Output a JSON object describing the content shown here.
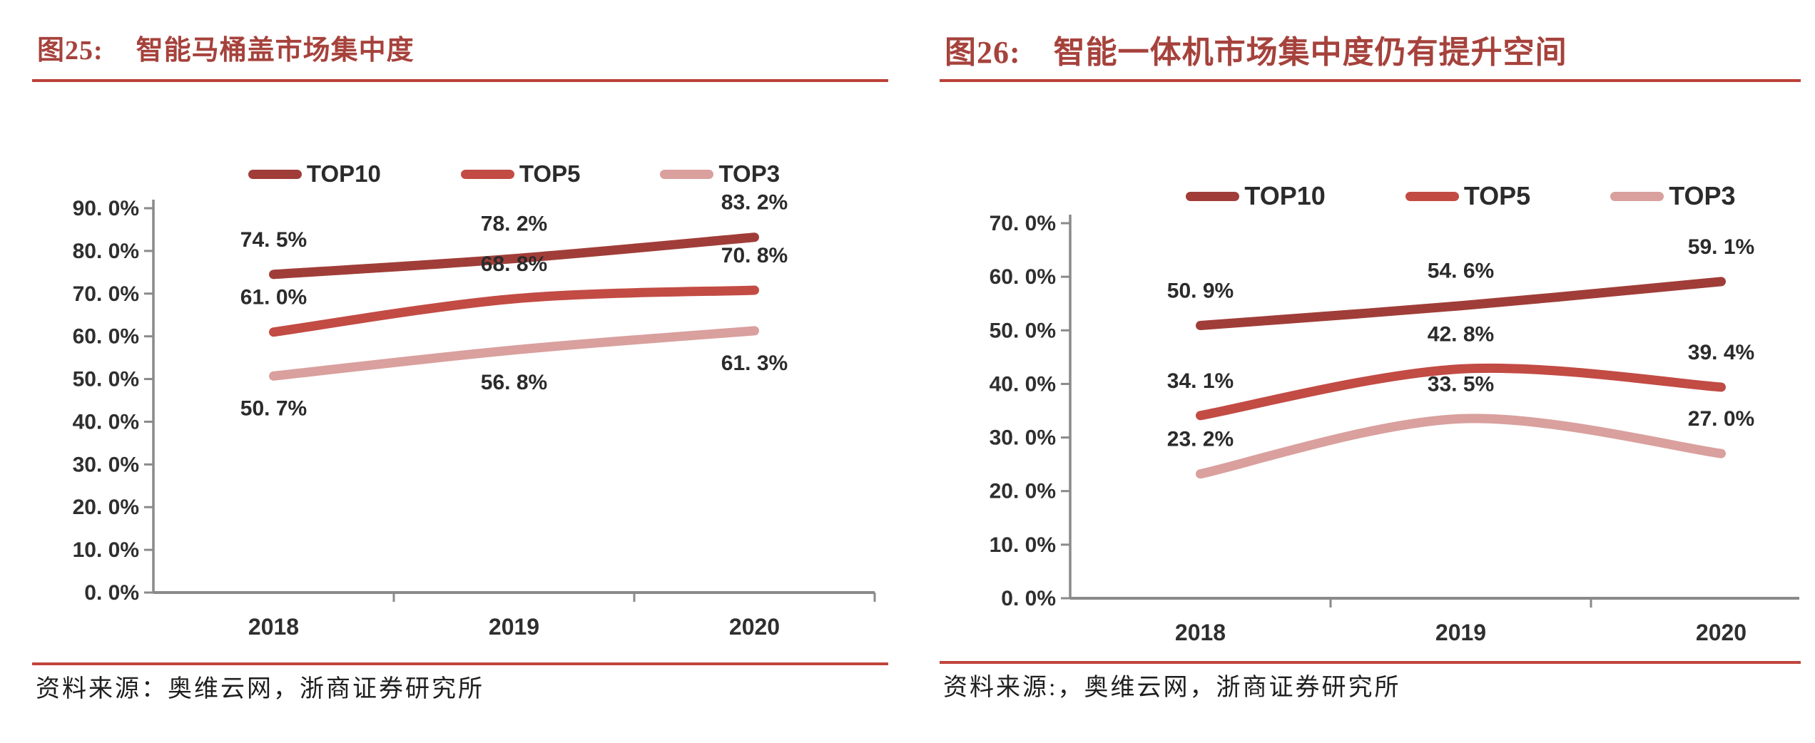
{
  "colors": {
    "background": "#ffffff",
    "title": "#a6423c",
    "heading_rule": "#bc4038",
    "divider_rule": "#c0453c",
    "axis": "#8a8a8a",
    "tick_text": "#2f2f2f",
    "label_text": "#2b2b2b",
    "source_text": "#1f1f1f",
    "top10": "#a03d38",
    "top5": "#c24b44",
    "top3": "#d9a09e"
  },
  "panels": [
    {
      "figure_label": "图25:",
      "title": "智能马桶盖市场集中度",
      "source": "资料来源：奥维云网，浙商证券研究所"
    },
    {
      "figure_label": "图26:",
      "title": "智能一体机市场集中度仍有提升空间",
      "source": "资料来源:，奥维云网，浙商证券研究所"
    }
  ],
  "chart_data": [
    {
      "type": "line",
      "title": "图25: 智能马桶盖市场集中度",
      "categories": [
        "2018",
        "2019",
        "2020"
      ],
      "series": [
        {
          "name": "TOP10",
          "values": [
            74.5,
            78.2,
            83.2
          ],
          "point_labels": [
            "74. 5%",
            "78. 2%",
            "83. 2%"
          ],
          "color": "#a03d38",
          "label_position": "above"
        },
        {
          "name": "TOP5",
          "values": [
            61.0,
            68.8,
            70.8
          ],
          "point_labels": [
            "61. 0%",
            "68. 8%",
            "70. 8%"
          ],
          "color": "#c24b44",
          "label_position": "above"
        },
        {
          "name": "TOP3",
          "values": [
            50.7,
            56.8,
            61.3
          ],
          "point_labels": [
            "50. 7%",
            "56. 8%",
            "61. 3%"
          ],
          "color": "#d9a09e",
          "label_position": "below"
        }
      ],
      "xlabel": "",
      "ylabel": "",
      "ylim": [
        0,
        90
      ],
      "ytick_step": 10,
      "ytick_labels": [
        "0. 0%",
        "10. 0%",
        "20. 0%",
        "30. 0%",
        "40. 0%",
        "50. 0%",
        "60. 0%",
        "70. 0%",
        "80. 0%",
        "90. 0%"
      ],
      "legend_position": "top",
      "grid": false,
      "line_style": "smooth"
    },
    {
      "type": "line",
      "title": "图26: 智能一体机市场集中度仍有提升空间",
      "categories": [
        "2018",
        "2019",
        "2020"
      ],
      "series": [
        {
          "name": "TOP10",
          "values": [
            50.9,
            54.6,
            59.1
          ],
          "point_labels": [
            "50. 9%",
            "54. 6%",
            "59. 1%"
          ],
          "color": "#a03d38",
          "label_position": "above"
        },
        {
          "name": "TOP5",
          "values": [
            34.1,
            42.8,
            39.4
          ],
          "point_labels": [
            "34. 1%",
            "42. 8%",
            "39. 4%"
          ],
          "color": "#c24b44",
          "label_position": "above"
        },
        {
          "name": "TOP3",
          "values": [
            23.2,
            33.5,
            27.0
          ],
          "point_labels": [
            "23. 2%",
            "33. 5%",
            "27. 0%"
          ],
          "color": "#d9a09e",
          "label_position": "above"
        }
      ],
      "xlabel": "",
      "ylabel": "",
      "ylim": [
        0,
        70
      ],
      "ytick_step": 10,
      "ytick_labels": [
        "0. 0%",
        "10. 0%",
        "20. 0%",
        "30. 0%",
        "40. 0%",
        "50. 0%",
        "60. 0%",
        "70. 0%"
      ],
      "legend_position": "top",
      "grid": false,
      "line_style": "smooth"
    }
  ]
}
